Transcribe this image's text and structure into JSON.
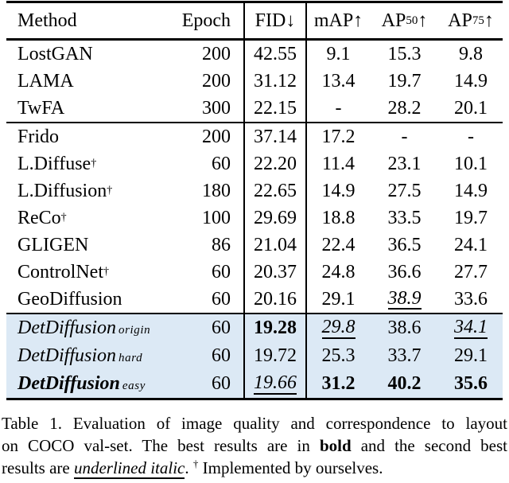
{
  "colors": {
    "highlight_row_background": "#dce9f5",
    "text": "#000000",
    "rules": "#000000"
  },
  "table": {
    "header": {
      "method": "Method",
      "epoch": "Epoch",
      "fid": "FID↓",
      "map": "mAP↑",
      "ap50": {
        "base": "AP",
        "sub": "50",
        "arrow": "↑"
      },
      "ap75": {
        "base": "AP",
        "sub": "75",
        "arrow": "↑"
      }
    },
    "rows": [
      {
        "method": "LostGAN",
        "epoch": "200",
        "fid": "42.55",
        "map": "9.1",
        "ap50": "15.3",
        "ap75": "9.8"
      },
      {
        "method": "LAMA",
        "epoch": "200",
        "fid": "31.12",
        "map": "13.4",
        "ap50": "19.7",
        "ap75": "14.9"
      },
      {
        "method": "TwFA",
        "epoch": "300",
        "fid": "22.15",
        "map": "-",
        "ap50": "28.2",
        "ap75": "20.1"
      },
      {
        "method": "Frido",
        "epoch": "200",
        "fid": "37.14",
        "map": "17.2",
        "ap50": "-",
        "ap75": "-"
      },
      {
        "method": "L.Diffuse",
        "sup": "†",
        "epoch": "60",
        "fid": "22.20",
        "map": "11.4",
        "ap50": "23.1",
        "ap75": "10.1"
      },
      {
        "method": "L.Diffusion",
        "sup": "†",
        "epoch": "180",
        "fid": "22.65",
        "map": "14.9",
        "ap50": "27.5",
        "ap75": "14.9"
      },
      {
        "method": "ReCo",
        "sup": "†",
        "epoch": "100",
        "fid": "29.69",
        "map": "18.8",
        "ap50": "33.5",
        "ap75": "19.7"
      },
      {
        "method": "GLIGEN",
        "epoch": "86",
        "fid": "21.04",
        "map": "22.4",
        "ap50": "36.5",
        "ap75": "24.1"
      },
      {
        "method": "ControlNet",
        "sup": "†",
        "epoch": "60",
        "fid": "20.37",
        "map": "24.8",
        "ap50": "36.6",
        "ap75": "27.7"
      },
      {
        "method": "GeoDiffusion",
        "epoch": "60",
        "fid": "20.16",
        "map": "29.1",
        "ap50": "38.9",
        "ap75": "33.6"
      },
      {
        "method": "DetDiffusion",
        "sub": "origin",
        "epoch": "60",
        "fid": "19.28",
        "map": "29.8",
        "ap50": "38.6",
        "ap75": "34.1"
      },
      {
        "method": "DetDiffusion",
        "sub": "hard",
        "epoch": "60",
        "fid": "19.72",
        "map": "25.3",
        "ap50": "33.7",
        "ap75": "29.1"
      },
      {
        "method": "DetDiffusion",
        "sub": "easy",
        "epoch": "60",
        "fid": "19.66",
        "map": "31.2",
        "ap50": "40.2",
        "ap75": "35.6"
      }
    ]
  },
  "caption": {
    "line1": "Table 1. Evaluation of image quality and correspondence to layout",
    "line2_pre": "on COCO val-set. The best results are in ",
    "line2_bold": "bold",
    "line2_post": " and the second best",
    "line3_pre": "results are ",
    "line3_underlined_italic": "underlined italic",
    "line3_dot": ". ",
    "line3_dagger": "†",
    "line3_post": " Implemented by ourselves."
  }
}
